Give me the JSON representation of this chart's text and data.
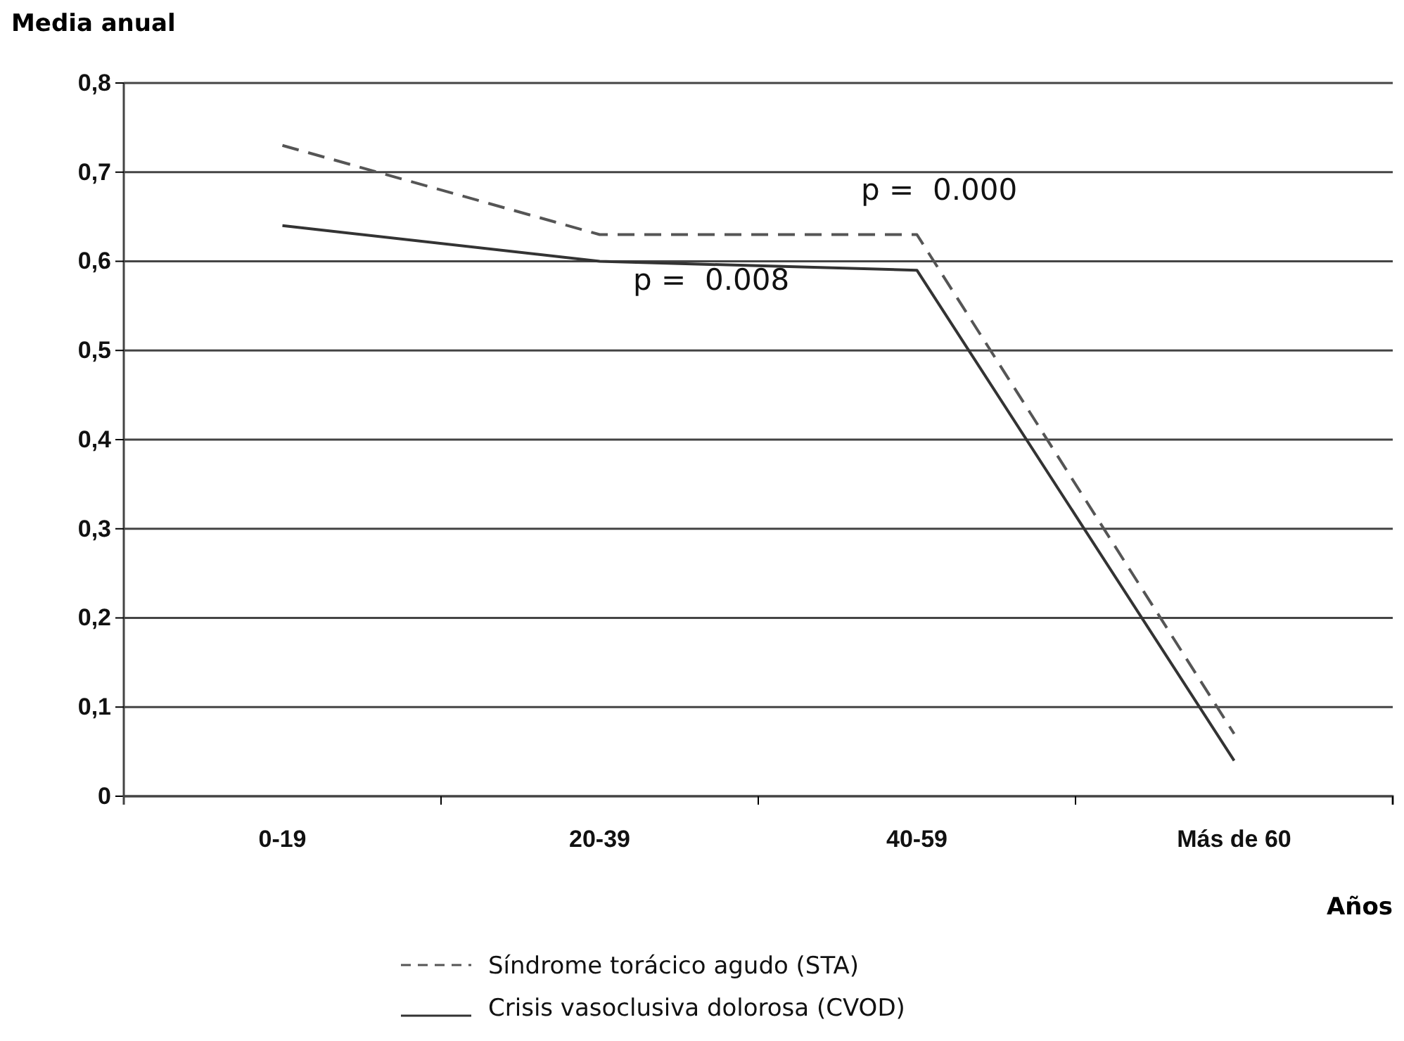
{
  "chart_data": {
    "type": "line",
    "ylabel": "Media anual",
    "xlabel": "Años",
    "categories": [
      "0-19",
      "20-39",
      "40-59",
      "Más de 60"
    ],
    "series": [
      {
        "name": "Síndrome torácico agudo (STA)",
        "color": "#555555",
        "line_style": "dashed",
        "values": [
          0.73,
          0.63,
          0.63,
          0.07
        ]
      },
      {
        "name": "Crisis vasoclusiva dolorosa (CVOD)",
        "color": "#333333",
        "line_style": "solid",
        "values": [
          0.64,
          0.6,
          0.59,
          0.04
        ]
      }
    ],
    "ylim": [
      0,
      0.8
    ],
    "yticks": [
      {
        "value": 0,
        "label": "0"
      },
      {
        "value": 0.1,
        "label": "0,1"
      },
      {
        "value": 0.2,
        "label": "0,2"
      },
      {
        "value": 0.3,
        "label": "0,3"
      },
      {
        "value": 0.4,
        "label": "0,4"
      },
      {
        "value": 0.5,
        "label": "0,5"
      },
      {
        "value": 0.6,
        "label": "0,6"
      },
      {
        "value": 0.7,
        "label": "0,7"
      },
      {
        "value": 0.8,
        "label": "0,8"
      }
    ],
    "grid": "y",
    "legend": "bottom",
    "marker": "none",
    "annotations": [
      "p =  0.000",
      "p =  0.008"
    ]
  }
}
